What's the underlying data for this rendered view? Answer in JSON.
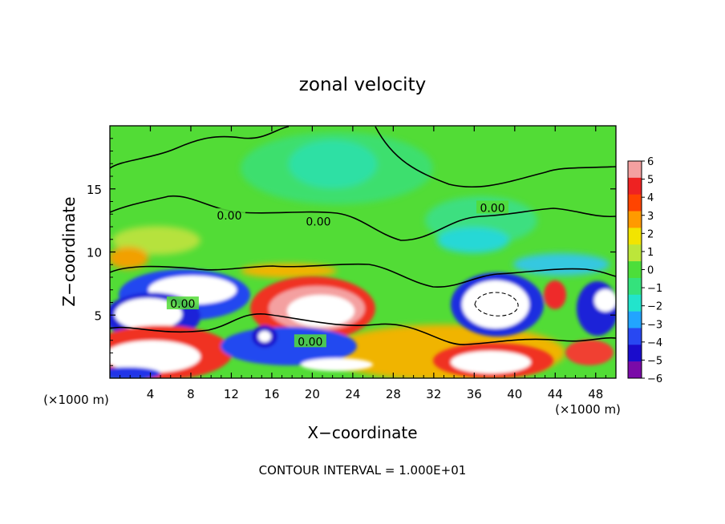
{
  "chart_data": {
    "type": "heatmap",
    "title": "zonal velocity",
    "xlabel": "X−coordinate",
    "ylabel": "Z−coordinate",
    "x_unit_left": "(×1000 m)",
    "x_unit_right": "(×1000 m)",
    "xlim": [
      0,
      50
    ],
    "ylim": [
      0,
      20
    ],
    "x_ticks": [
      4,
      8,
      12,
      16,
      20,
      24,
      28,
      32,
      36,
      40,
      44,
      48
    ],
    "y_ticks": [
      5,
      10,
      15
    ],
    "contour_labels": [
      {
        "text": "0.00",
        "x": 11.8,
        "y": 12.9
      },
      {
        "text": "0.00",
        "x": 20.6,
        "y": 12.4
      },
      {
        "text": "0.00",
        "x": 37.8,
        "y": 13.5
      },
      {
        "text": "0.00",
        "x": 7.2,
        "y": 5.9
      },
      {
        "text": "0.00",
        "x": 19.8,
        "y": 2.9
      }
    ],
    "colorbar": {
      "levels": [
        6,
        5,
        4,
        3,
        2,
        1,
        0,
        -1,
        -2,
        -3,
        -4,
        -5,
        -6
      ],
      "labels": [
        "6",
        "5",
        "4",
        "3",
        "2",
        "1",
        "0",
        "−1",
        "−2",
        "−3",
        "−4",
        "−5",
        "−6"
      ],
      "colors": [
        "#f4a0a0",
        "#ee2222",
        "#ff4400",
        "#ff9a00",
        "#f2e400",
        "#bce63a",
        "#4cde3a",
        "#34e27c",
        "#22e4cc",
        "#22a4ff",
        "#2848f2",
        "#1a0ccc",
        "#7a0aa8"
      ]
    },
    "footer": "CONTOUR INTERVAL = 1.000E+01"
  }
}
